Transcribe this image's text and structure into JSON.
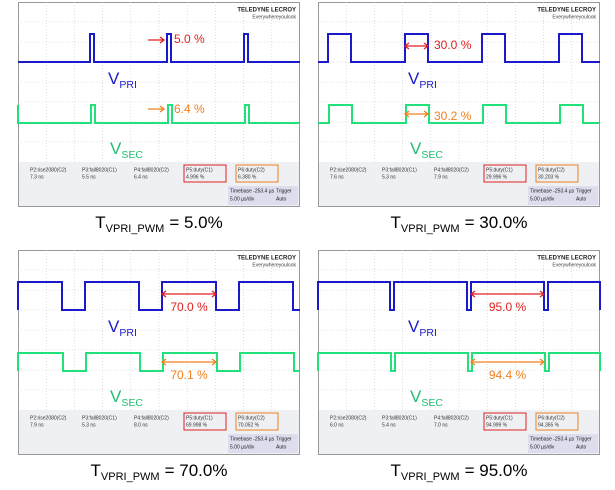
{
  "brand": "TELEDYNE LECROY",
  "brand_tagline": "Everywhereyoulook",
  "panels": [
    {
      "vpri_label": {
        "main": "V",
        "sub": "PRI"
      },
      "vsec_label": {
        "main": "V",
        "sub": "SEC"
      },
      "pri_annotation": "5.0 %",
      "sec_annotation": "6.4 %",
      "measurements": [
        {
          "name": "P2:rise2080(C2)",
          "value": "7.3 ns"
        },
        {
          "name": "P3:fall8020(C1)",
          "value": "5.5 ns"
        },
        {
          "name": "P4:fall8020(C2)",
          "value": "6.4 ns"
        },
        {
          "name": "P5:duty(C1)",
          "value": "4.996 %"
        },
        {
          "name": "P6:duty(C2)",
          "value": "6.380 %"
        }
      ],
      "timebase": [
        "Timebase -253.4 µs",
        "Trigger",
        "5.00 µs/div",
        "Auto"
      ],
      "caption": {
        "main": "T",
        "sub": "VPRI_PWM",
        "rest": "= 5.0%"
      }
    },
    {
      "vpri_label": {
        "main": "V",
        "sub": "PRI"
      },
      "vsec_label": {
        "main": "V",
        "sub": "SEC"
      },
      "pri_annotation": "30.0 %",
      "sec_annotation": "30.2 %",
      "measurements": [
        {
          "name": "P2:rise2080(C2)",
          "value": "7.6 ns"
        },
        {
          "name": "P3:fall8020(C1)",
          "value": "5.3 ns"
        },
        {
          "name": "P4:fall8020(C2)",
          "value": "7.9 ns"
        },
        {
          "name": "P5:duty(C1)",
          "value": "29.996 %"
        },
        {
          "name": "P6:duty(C2)",
          "value": "30.203 %"
        }
      ],
      "timebase": [
        "Timebase -253.4 µs",
        "Trigger",
        "5.00 µs/div",
        "Auto"
      ],
      "caption": {
        "main": "T",
        "sub": "VPRI_PWM",
        "rest": "= 30.0%"
      }
    },
    {
      "vpri_label": {
        "main": "V",
        "sub": "PRI"
      },
      "vsec_label": {
        "main": "V",
        "sub": "SEC"
      },
      "pri_annotation": "70.0 %",
      "sec_annotation": "70.1 %",
      "measurements": [
        {
          "name": "P2:rise2080(C2)",
          "value": "7.9 ns"
        },
        {
          "name": "P3:fall8020(C1)",
          "value": "5.3 ns"
        },
        {
          "name": "P4:fall8020(C2)",
          "value": "8.0 ns"
        },
        {
          "name": "P5:duty(C1)",
          "value": "69.998 %"
        },
        {
          "name": "P6:duty(C2)",
          "value": "70.052 %"
        }
      ],
      "timebase": [
        "Timebase -253.4 µs",
        "Trigger",
        "5.00 µs/div",
        "Auto"
      ],
      "caption": {
        "main": "T",
        "sub": "VPRI_PWM",
        "rest": "= 70.0%"
      }
    },
    {
      "vpri_label": {
        "main": "V",
        "sub": "PRI"
      },
      "vsec_label": {
        "main": "V",
        "sub": "SEC"
      },
      "pri_annotation": "95.0 %",
      "sec_annotation": "94.4 %",
      "measurements": [
        {
          "name": "P2:rise2080(C2)",
          "value": "6.0 ns"
        },
        {
          "name": "P3:fall8020(C1)",
          "value": "5.4 ns"
        },
        {
          "name": "P4:fall8020(C2)",
          "value": "7.0 ns"
        },
        {
          "name": "P5:duty(C1)",
          "value": "94.999 %"
        },
        {
          "name": "P6:duty(C2)",
          "value": "94.365 %"
        }
      ],
      "timebase": [
        "Timebase -253.4 µs",
        "Trigger",
        "5.00 µs/div",
        "Auto"
      ],
      "caption": {
        "main": "T",
        "sub": "VPRI_PWM",
        "rest": "= 95.0%"
      }
    }
  ]
}
